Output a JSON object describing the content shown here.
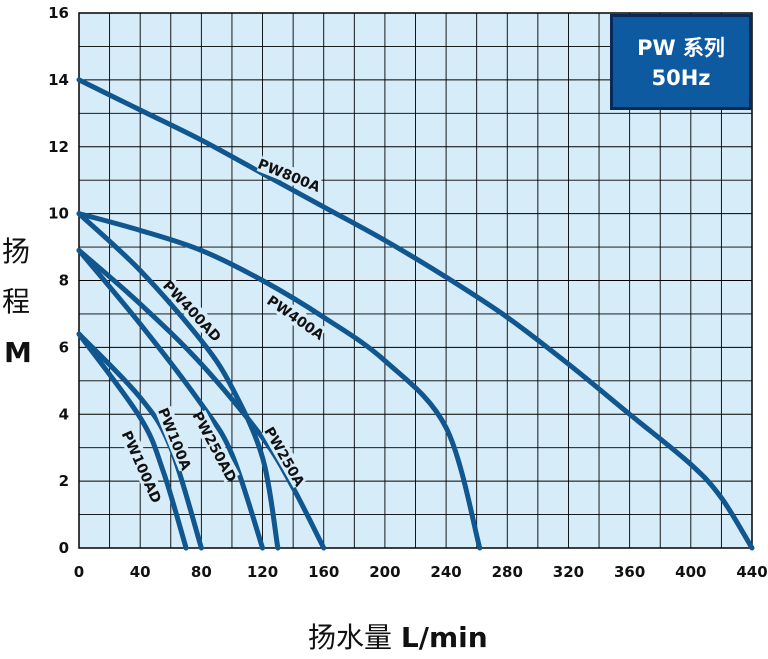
{
  "chart_data": {
    "type": "line",
    "badge": {
      "line1": "PW 系列",
      "line2": "50Hz"
    },
    "ylabel": {
      "char1": "扬",
      "char2": "程",
      "unit": "M"
    },
    "xlabel": {
      "text": "扬水量",
      "unit": "L/min"
    },
    "xlim": [
      0,
      440
    ],
    "ylim": [
      0,
      16
    ],
    "x_ticks": [
      0,
      40,
      80,
      120,
      160,
      200,
      240,
      280,
      320,
      360,
      400,
      440
    ],
    "y_ticks": [
      0,
      2,
      4,
      6,
      8,
      10,
      12,
      14,
      16
    ],
    "grid": true,
    "background_color": "#d7ecf9",
    "curve_color": "#10568f",
    "series": [
      {
        "name": "PW800A",
        "points": [
          [
            0,
            14
          ],
          [
            40,
            13.1
          ],
          [
            80,
            12.2
          ],
          [
            120,
            11.2
          ],
          [
            160,
            10.2
          ],
          [
            200,
            9.2
          ],
          [
            240,
            8.1
          ],
          [
            280,
            6.9
          ],
          [
            320,
            5.5
          ],
          [
            360,
            4.0
          ],
          [
            400,
            2.5
          ],
          [
            420,
            1.5
          ],
          [
            440,
            0
          ]
        ]
      },
      {
        "name": "PW400A",
        "points": [
          [
            0,
            10
          ],
          [
            40,
            9.5
          ],
          [
            80,
            8.9
          ],
          [
            120,
            8.0
          ],
          [
            160,
            6.9
          ],
          [
            200,
            5.6
          ],
          [
            240,
            3.6
          ],
          [
            262,
            0
          ]
        ]
      },
      {
        "name": "PW400AD",
        "points": [
          [
            0,
            10
          ],
          [
            40,
            8.3
          ],
          [
            80,
            6.2
          ],
          [
            100,
            4.8
          ],
          [
            120,
            2.7
          ],
          [
            130,
            0
          ]
        ]
      },
      {
        "name": "PW250A",
        "points": [
          [
            0,
            8.9
          ],
          [
            40,
            7.3
          ],
          [
            80,
            5.5
          ],
          [
            120,
            3.3
          ],
          [
            140,
            1.8
          ],
          [
            160,
            0
          ]
        ]
      },
      {
        "name": "PW250AD",
        "points": [
          [
            0,
            8.9
          ],
          [
            40,
            6.7
          ],
          [
            80,
            4.3
          ],
          [
            100,
            2.8
          ],
          [
            120,
            0
          ]
        ]
      },
      {
        "name": "PW100A",
        "points": [
          [
            0,
            6.4
          ],
          [
            40,
            4.5
          ],
          [
            60,
            3.0
          ],
          [
            80,
            0
          ]
        ]
      },
      {
        "name": "PW100AD",
        "points": [
          [
            0,
            6.4
          ],
          [
            40,
            3.9
          ],
          [
            55,
            2.3
          ],
          [
            70,
            0
          ]
        ]
      }
    ]
  }
}
